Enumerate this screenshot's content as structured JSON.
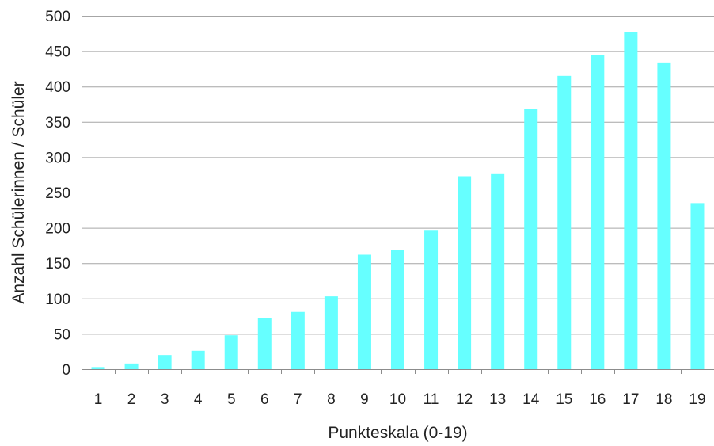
{
  "chart_data": {
    "type": "bar",
    "title": "",
    "xlabel": "Punkteskala (0-19)",
    "ylabel": "Anzahl Schülerinnen / Schüler",
    "categories": [
      "1",
      "2",
      "3",
      "4",
      "5",
      "6",
      "7",
      "8",
      "9",
      "10",
      "11",
      "12",
      "13",
      "14",
      "15",
      "16",
      "17",
      "18",
      "19"
    ],
    "values": [
      3,
      8,
      20,
      26,
      48,
      72,
      81,
      103,
      162,
      169,
      197,
      273,
      276,
      368,
      415,
      445,
      477,
      434,
      235
    ],
    "ylim": [
      0,
      500
    ],
    "yticks": [
      0,
      50,
      100,
      150,
      200,
      250,
      300,
      350,
      400,
      450,
      500
    ],
    "grid": "horizontal",
    "legend": "none",
    "bar_color": "#66ffff"
  }
}
